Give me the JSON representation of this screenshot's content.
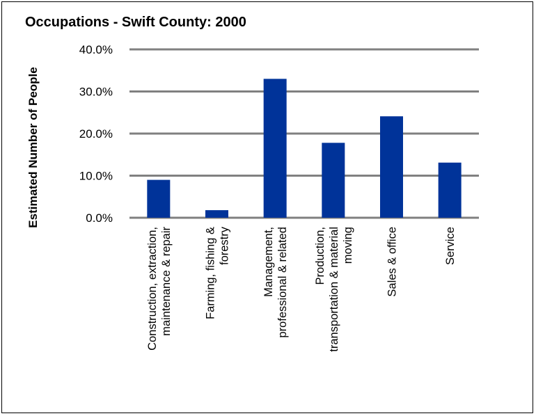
{
  "chart_data": {
    "type": "bar",
    "title": "Occupations - Swift County: 2000",
    "ylabel": "Estimated Number of People",
    "xlabel": "",
    "ylim": [
      0,
      40
    ],
    "yticks": [
      "0.0%",
      "10.0%",
      "20.0%",
      "30.0%",
      "40.0%"
    ],
    "grid": true,
    "bar_color": "#003399",
    "grid_color": "#808080",
    "categories": [
      [
        "Construction, extraction,",
        "maintenance & repair"
      ],
      [
        "Farming, fishing &",
        "forestry"
      ],
      [
        "Management,",
        "professional & related"
      ],
      [
        "Production,",
        "transportation & material",
        "moving"
      ],
      [
        "Sales & office"
      ],
      [
        "Service"
      ]
    ],
    "values": [
      9.0,
      1.8,
      33.0,
      17.8,
      24.1,
      13.1
    ]
  }
}
